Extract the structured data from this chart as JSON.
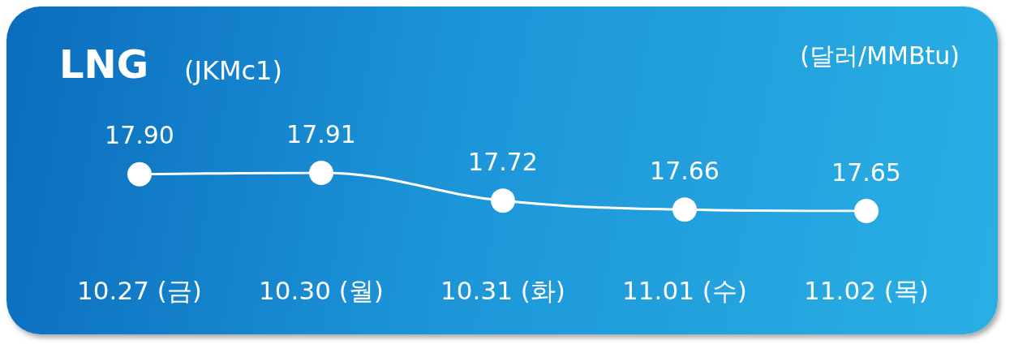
{
  "chart_data": {
    "type": "line",
    "title": "LNG",
    "subtitle": "(JKMc1)",
    "ylabel": "(달러/MMBtu)",
    "categories": [
      "10.27 (금)",
      "10.30 (월)",
      "10.31 (화)",
      "11.01 (수)",
      "11.02 (목)"
    ],
    "series": [
      {
        "color": "#ffffff",
        "values": [
          17.9,
          17.91,
          17.72,
          17.66,
          17.65
        ],
        "value_labels": [
          "17.90",
          "17.91",
          "17.72",
          "17.66",
          "17.65"
        ]
      }
    ],
    "marker": "circle",
    "line_style": "solid",
    "grid": false
  }
}
